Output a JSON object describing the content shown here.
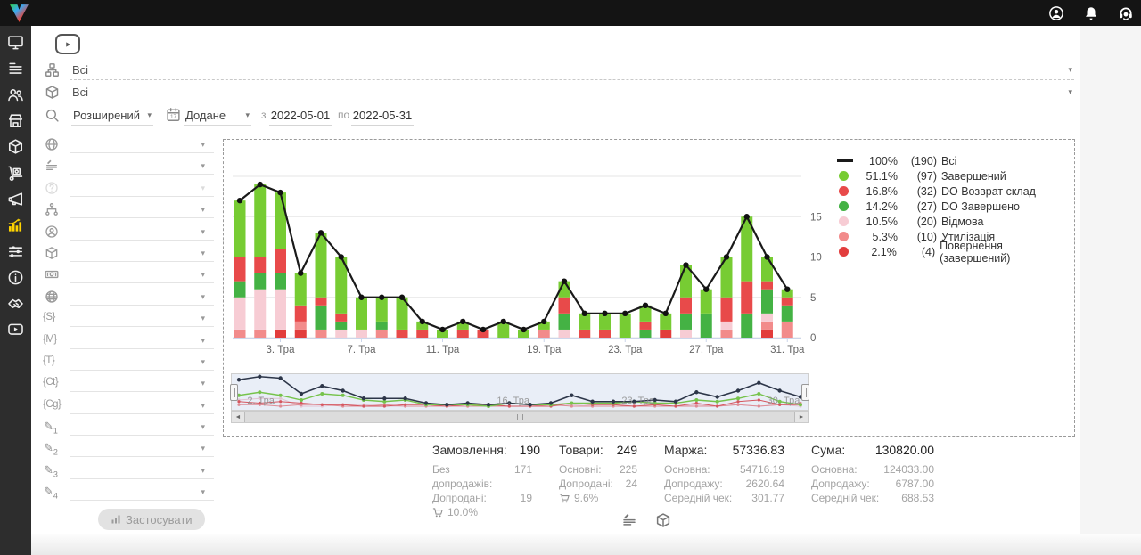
{
  "topbar": {
    "icons": [
      {
        "name": "account-icon",
        "icon": "user"
      },
      {
        "name": "notifications-icon",
        "icon": "bell"
      },
      {
        "name": "support-icon",
        "icon": "headset"
      }
    ]
  },
  "sidebar": {
    "items": [
      {
        "name": "sidebar-item-dashboard",
        "icon": "monitor",
        "active": false
      },
      {
        "name": "sidebar-item-orders",
        "icon": "listtune",
        "active": false
      },
      {
        "name": "sidebar-item-customers",
        "icon": "users",
        "active": false
      },
      {
        "name": "sidebar-item-store",
        "icon": "building",
        "active": false
      },
      {
        "name": "sidebar-item-products",
        "icon": "package",
        "active": false
      },
      {
        "name": "sidebar-item-supply",
        "icon": "trolley",
        "active": false
      },
      {
        "name": "sidebar-item-marketing",
        "icon": "megaphone",
        "active": false
      },
      {
        "name": "sidebar-item-statistics",
        "icon": "chart",
        "active": true
      },
      {
        "name": "sidebar-item-settings",
        "icon": "sliders",
        "active": false
      },
      {
        "name": "sidebar-item-info",
        "icon": "info",
        "active": false
      },
      {
        "name": "sidebar-item-partners",
        "icon": "handshake",
        "active": false
      },
      {
        "name": "sidebar-item-video",
        "icon": "video",
        "active": false
      }
    ]
  },
  "toolbar": {
    "category_value": "Всі",
    "product_value": "Всі",
    "search_mode_value": "Розширений",
    "date_field_value": "Додане",
    "from_label": "з",
    "date_from": "2022-05-01",
    "to_label": "по",
    "date_to": "2022-05-31"
  },
  "filter_panel": {
    "rows": [
      {
        "name": "filter-country",
        "icon": "globe"
      },
      {
        "name": "filter-status-list",
        "icon": "listedit"
      },
      {
        "name": "filter-help",
        "icon": "help",
        "disabled": true
      },
      {
        "name": "filter-structure",
        "icon": "hierarchy"
      },
      {
        "name": "filter-manager",
        "icon": "usercircle"
      },
      {
        "name": "filter-product",
        "icon": "box3d"
      },
      {
        "name": "filter-payment",
        "icon": "banknote"
      },
      {
        "name": "filter-source",
        "icon": "web"
      },
      {
        "name": "filter-s",
        "icon": "brace",
        "label": "{S}"
      },
      {
        "name": "filter-m",
        "icon": "brace",
        "label": "{M}"
      },
      {
        "name": "filter-t",
        "icon": "brace",
        "label": "{T}"
      },
      {
        "name": "filter-ct",
        "icon": "brace",
        "label": "{Ct}"
      },
      {
        "name": "filter-cg",
        "icon": "brace",
        "label": "{Cg}"
      },
      {
        "name": "filter-custom-1",
        "icon": "pencil",
        "label": "1"
      },
      {
        "name": "filter-custom-2",
        "icon": "pencil",
        "label": "2"
      },
      {
        "name": "filter-custom-3",
        "icon": "pencil",
        "label": "3"
      },
      {
        "name": "filter-custom-4",
        "icon": "pencil",
        "label": "4"
      }
    ],
    "apply_label": "Застосувати"
  },
  "chart_data": {
    "type": "bar",
    "subtype": "stacked-bars-with-total-line",
    "categories": [
      "1. Тра",
      "2. Тра",
      "3. Тра",
      "4. Тра",
      "5. Тра",
      "6. Тра",
      "7. Тра",
      "8. Тра",
      "9. Тра",
      "10. Тра",
      "11. Тра",
      "12. Тра",
      "13. Тра",
      "16. Тра",
      "18. Тра",
      "19. Тра",
      "20. Тра",
      "21. Тра",
      "22. Тра",
      "23. Тра",
      "24. Тра",
      "25. Тра",
      "26. Тра",
      "27. Тра",
      "28. Тра",
      "29. Тра",
      "30. Тра",
      "31. Тра"
    ],
    "x_tick_labels": [
      "3. Тра",
      "7. Тра",
      "11. Тра",
      "19. Тра",
      "23. Тра",
      "27. Тра",
      "31. Тра"
    ],
    "yticks": [
      0,
      5,
      10,
      15,
      20
    ],
    "ytick_labels": [
      "0",
      "5",
      "10",
      "15"
    ],
    "ylim": [
      0,
      21
    ],
    "series": [
      {
        "name": "Всі",
        "type": "line",
        "color": "#1a1a1a",
        "values": [
          17,
          19,
          18,
          8,
          13,
          10,
          5,
          5,
          5,
          2,
          1,
          2,
          1,
          2,
          1,
          2,
          7,
          3,
          3,
          3,
          4,
          3,
          9,
          6,
          10,
          15,
          10,
          6
        ]
      },
      {
        "name": "Завершений",
        "type": "bar",
        "color": "#77cc33",
        "values": [
          7,
          9,
          7,
          4,
          8,
          7,
          4,
          3,
          4,
          1,
          1,
          1,
          0,
          2,
          1,
          1,
          2,
          2,
          2,
          3,
          2,
          2,
          4,
          3,
          5,
          8,
          3,
          1
        ]
      },
      {
        "name": "DO Возврат склад",
        "type": "bar",
        "color": "#e84a4a",
        "values": [
          3,
          2,
          3,
          2,
          1,
          1,
          0,
          0,
          1,
          1,
          0,
          1,
          1,
          0,
          0,
          0,
          2,
          1,
          1,
          0,
          1,
          0,
          2,
          0,
          3,
          4,
          1,
          1
        ]
      },
      {
        "name": "DO Завершено",
        "type": "bar",
        "color": "#44b244",
        "values": [
          2,
          2,
          2,
          0,
          3,
          1,
          0,
          1,
          0,
          0,
          0,
          0,
          0,
          0,
          0,
          0,
          2,
          0,
          0,
          0,
          1,
          0,
          2,
          3,
          0,
          3,
          3,
          2
        ]
      },
      {
        "name": "Відмова",
        "type": "bar",
        "color": "#f7ccd4",
        "values": [
          4,
          5,
          5,
          0,
          0,
          1,
          1,
          0,
          0,
          0,
          0,
          0,
          0,
          0,
          0,
          0,
          1,
          0,
          0,
          0,
          0,
          0,
          1,
          0,
          1,
          0,
          1,
          0
        ]
      },
      {
        "name": "Утилізація",
        "type": "bar",
        "color": "#f28b8b",
        "values": [
          1,
          1,
          0,
          1,
          1,
          0,
          0,
          1,
          0,
          0,
          0,
          0,
          0,
          0,
          0,
          1,
          0,
          0,
          0,
          0,
          0,
          0,
          0,
          0,
          1,
          0,
          1,
          2
        ]
      },
      {
        "name": "Повернення (завершений)",
        "type": "bar",
        "color": "#e23d3d",
        "values": [
          0,
          0,
          1,
          1,
          0,
          0,
          0,
          0,
          0,
          0,
          0,
          0,
          0,
          0,
          0,
          0,
          0,
          0,
          0,
          0,
          0,
          1,
          0,
          0,
          0,
          0,
          1,
          0
        ]
      }
    ]
  },
  "legend": [
    {
      "symbol": "line",
      "color": "#1a1a1a",
      "pct": "100%",
      "count": "(190)",
      "label": "Всі"
    },
    {
      "symbol": "dot",
      "color": "#77cc33",
      "pct": "51.1%",
      "count": "(97)",
      "label": "Завершений"
    },
    {
      "symbol": "dot",
      "color": "#e84a4a",
      "pct": "16.8%",
      "count": "(32)",
      "label": "DO Возврат склад"
    },
    {
      "symbol": "dot",
      "color": "#44b244",
      "pct": "14.2%",
      "count": "(27)",
      "label": "DO Завершено"
    },
    {
      "symbol": "dot",
      "color": "#f7ccd4",
      "pct": "10.5%",
      "count": "(20)",
      "label": "Відмова"
    },
    {
      "symbol": "dot",
      "color": "#f28b8b",
      "pct": "5.3%",
      "count": "(10)",
      "label": "Утилізація"
    },
    {
      "symbol": "dot",
      "color": "#e23d3d",
      "pct": "2.1%",
      "count": "(4)",
      "label": "Повернення (завершений)"
    }
  ],
  "navigator": {
    "labels": [
      {
        "text": "2. Тра",
        "index": 1
      },
      {
        "text": "16. Тра",
        "index": 13
      },
      {
        "text": "23. Тра",
        "index": 19
      },
      {
        "text": "30. Тра",
        "index": 26
      }
    ]
  },
  "stats": {
    "columns": [
      {
        "title": "Замовлення:",
        "value": "190",
        "rows": [
          [
            "Без допродажів:",
            "171"
          ],
          [
            "Допродані:",
            "19"
          ]
        ],
        "cart_pct": "10.0%",
        "width": 112
      },
      {
        "title": "Товари:",
        "value": "249",
        "rows": [
          [
            "Основні:",
            "225"
          ],
          [
            "Допродані:",
            "24"
          ]
        ],
        "cart_pct": "9.6%",
        "width": 88
      },
      {
        "title": "Маржа:",
        "value": "57336.83",
        "rows": [
          [
            "Основна:",
            "54716.19"
          ],
          [
            "Допродажу:",
            "2620.64"
          ],
          [
            "Середній чек:",
            "301.77"
          ]
        ],
        "width": 135
      },
      {
        "title": "Сума:",
        "value": "130820.00",
        "rows": [
          [
            "Основна:",
            "124033.00"
          ],
          [
            "Допродажу:",
            "6787.00"
          ],
          [
            "Середній чек:",
            "688.53"
          ]
        ],
        "width": 138
      }
    ]
  },
  "view_toggles": [
    {
      "name": "toggle-status-list",
      "icon": "listedit"
    },
    {
      "name": "toggle-products",
      "icon": "box3d"
    }
  ]
}
